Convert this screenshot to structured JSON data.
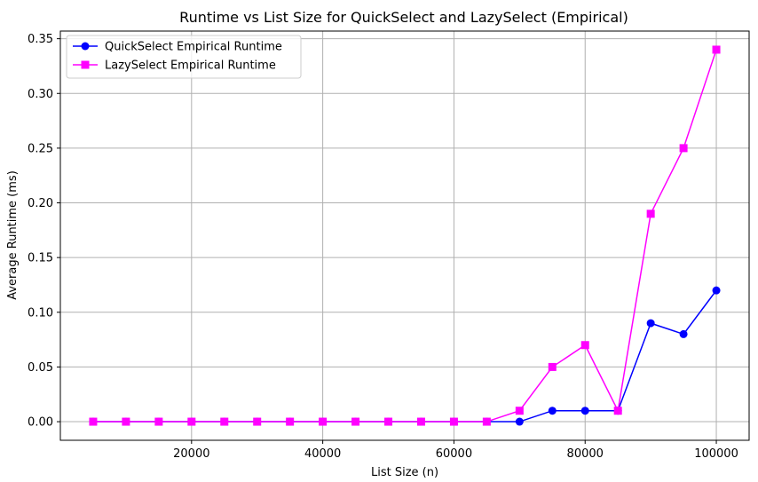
{
  "chart_data": {
    "type": "line",
    "title": "Runtime vs List Size for QuickSelect and LazySelect (Empirical)",
    "xlabel": "List Size (n)",
    "ylabel": "Average Runtime (ms)",
    "xlim": [
      0,
      105000
    ],
    "ylim": [
      -0.017,
      0.357
    ],
    "xticks": [
      20000,
      40000,
      60000,
      80000,
      100000
    ],
    "yticks": [
      0.0,
      0.05,
      0.1,
      0.15,
      0.2,
      0.25,
      0.3,
      0.35
    ],
    "grid": true,
    "legend_position": "top-left",
    "x": [
      5000,
      10000,
      15000,
      20000,
      25000,
      30000,
      35000,
      40000,
      45000,
      50000,
      55000,
      60000,
      65000,
      70000,
      75000,
      80000,
      85000,
      90000,
      95000,
      100000
    ],
    "series": [
      {
        "name": "QuickSelect Empirical Runtime",
        "color": "#0000ff",
        "marker": "circle",
        "values": [
          0,
          0,
          0,
          0,
          0,
          0,
          0,
          0,
          0,
          0,
          0,
          0,
          0,
          0,
          0.01,
          0.01,
          0.01,
          0.09,
          0.08,
          0.12
        ]
      },
      {
        "name": "LazySelect Empirical Runtime",
        "color": "#ff00ff",
        "marker": "square",
        "values": [
          0,
          0,
          0,
          0,
          0,
          0,
          0,
          0,
          0,
          0,
          0,
          0,
          0,
          0.01,
          0.05,
          0.07,
          0.01,
          0.19,
          0.25,
          0.34
        ]
      }
    ]
  }
}
